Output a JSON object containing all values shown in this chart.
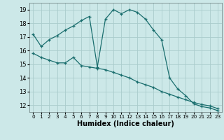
{
  "xlabel": "Humidex (Indice chaleur)",
  "bg_color": "#cce8e8",
  "grid_color": "#aacccc",
  "line_color": "#1a6e6e",
  "xlim": [
    -0.5,
    23.5
  ],
  "ylim": [
    11.5,
    19.5
  ],
  "xticks": [
    0,
    1,
    2,
    3,
    4,
    5,
    6,
    7,
    8,
    9,
    10,
    11,
    12,
    13,
    14,
    15,
    16,
    17,
    18,
    19,
    20,
    21,
    22,
    23
  ],
  "yticks": [
    12,
    13,
    14,
    15,
    16,
    17,
    18,
    19
  ],
  "line1_x": [
    0,
    1,
    2,
    3,
    4,
    5,
    6,
    7,
    8,
    9,
    10,
    11,
    12,
    13,
    14,
    15,
    16,
    17,
    18,
    19,
    20,
    21,
    22,
    23
  ],
  "line1_y": [
    17.2,
    16.3,
    16.8,
    17.1,
    17.5,
    17.8,
    18.2,
    18.5,
    14.8,
    18.3,
    19.0,
    18.7,
    19.0,
    18.8,
    18.3,
    17.5,
    16.8,
    14.0,
    13.2,
    12.7,
    12.1,
    11.9,
    11.8,
    11.6
  ],
  "line2_x": [
    0,
    1,
    2,
    3,
    4,
    5,
    6,
    7,
    8,
    9,
    10,
    11,
    12,
    13,
    14,
    15,
    16,
    17,
    18,
    19,
    20,
    21,
    22,
    23
  ],
  "line2_y": [
    15.8,
    15.5,
    15.3,
    15.1,
    15.1,
    15.5,
    14.9,
    14.8,
    14.7,
    14.6,
    14.4,
    14.2,
    14.0,
    13.7,
    13.5,
    13.3,
    13.0,
    12.8,
    12.6,
    12.4,
    12.2,
    12.05,
    11.95,
    11.75
  ]
}
